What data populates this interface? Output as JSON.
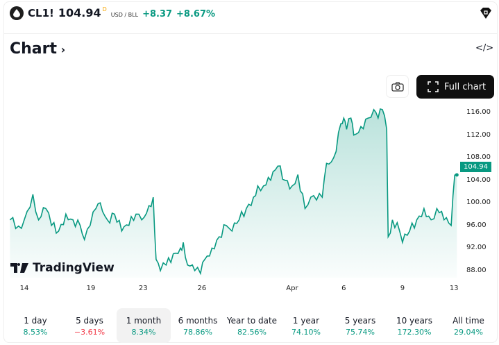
{
  "header": {
    "symbol": "CL1!",
    "price": "104.94",
    "price_flag": "D",
    "currency": "USD / BLL",
    "change": "+8.37",
    "change_pct": "+8.67%"
  },
  "title": "Chart",
  "buttons": {
    "full_chart": "Full chart"
  },
  "brand": "TradingView",
  "last_price_badge": "104.94",
  "periods": [
    {
      "label": "1 day",
      "value": "8.53%",
      "neg": false
    },
    {
      "label": "5 days",
      "value": "−3.61%",
      "neg": true
    },
    {
      "label": "1 month",
      "value": "8.34%",
      "neg": false,
      "selected": true
    },
    {
      "label": "6 months",
      "value": "78.86%",
      "neg": false
    },
    {
      "label": "Year to date",
      "value": "82.56%",
      "neg": false
    },
    {
      "label": "1 year",
      "value": "74.10%",
      "neg": false
    },
    {
      "label": "5 years",
      "value": "75.74%",
      "neg": false
    },
    {
      "label": "10 years",
      "value": "172.30%",
      "neg": false
    },
    {
      "label": "All time",
      "value": "29.04%",
      "neg": false
    }
  ],
  "colors": {
    "line": "#089981",
    "negative": "#f23645"
  },
  "chart_data": {
    "type": "area",
    "ylim": [
      86,
      118
    ],
    "y_ticks": [
      "116.00",
      "112.00",
      "108.00",
      "104.00",
      "100.00",
      "96.00",
      "92.00",
      "88.00"
    ],
    "x_ticks": [
      {
        "label": "14",
        "day": 0
      },
      {
        "label": "19",
        "day": 4.65
      },
      {
        "label": "23",
        "day": 8.3
      },
      {
        "label": "26",
        "day": 12.4
      },
      {
        "label": "Apr",
        "day": 18.7
      },
      {
        "label": "6",
        "day": 22.3
      },
      {
        "label": "9",
        "day": 26.4
      },
      {
        "label": "13",
        "day": 30
      }
    ],
    "points": [
      [
        -1,
        97
      ],
      [
        -0.2,
        95.5
      ],
      [
        0.2,
        98.5
      ],
      [
        0.6,
        101.5
      ],
      [
        1,
        97
      ],
      [
        1.5,
        99
      ],
      [
        1.9,
        96
      ],
      [
        2.4,
        95
      ],
      [
        2.9,
        98
      ],
      [
        3.4,
        97
      ],
      [
        3.9,
        96
      ],
      [
        4.2,
        93.5
      ],
      [
        4.6,
        96
      ],
      [
        5,
        99
      ],
      [
        5.3,
        100
      ],
      [
        5.8,
        97
      ],
      [
        6.3,
        98
      ],
      [
        6.8,
        95
      ],
      [
        7.3,
        96
      ],
      [
        7.8,
        98
      ],
      [
        8.2,
        97
      ],
      [
        8.7,
        99.5
      ],
      [
        9,
        101
      ],
      [
        9.2,
        90
      ],
      [
        9.5,
        88
      ],
      [
        9.9,
        89
      ],
      [
        10.4,
        91
      ],
      [
        10.9,
        92
      ],
      [
        11.1,
        93
      ],
      [
        11.4,
        89
      ],
      [
        11.9,
        88
      ],
      [
        12.3,
        87.5
      ],
      [
        12.6,
        90
      ],
      [
        13.1,
        92
      ],
      [
        13.6,
        94
      ],
      [
        14.1,
        96
      ],
      [
        14.5,
        95
      ],
      [
        15,
        97
      ],
      [
        15.5,
        99
      ],
      [
        16,
        101
      ],
      [
        16.3,
        103
      ],
      [
        16.7,
        103
      ],
      [
        17.2,
        104
      ],
      [
        17.7,
        106.5
      ],
      [
        18.2,
        104
      ],
      [
        18.7,
        103
      ],
      [
        19.1,
        105
      ],
      [
        19.6,
        99
      ],
      [
        20,
        101
      ],
      [
        20.4,
        100.5
      ],
      [
        20.8,
        101
      ],
      [
        21.1,
        107
      ],
      [
        21.6,
        108
      ],
      [
        22.1,
        114
      ],
      [
        22.3,
        115
      ],
      [
        22.5,
        113
      ],
      [
        22.8,
        115
      ],
      [
        23,
        112
      ],
      [
        23.5,
        113.5
      ],
      [
        24,
        115
      ],
      [
        24.4,
        116.5
      ],
      [
        24.7,
        115
      ],
      [
        25,
        116.5
      ],
      [
        25.3,
        113
      ],
      [
        25.4,
        94
      ],
      [
        25.7,
        97
      ],
      [
        26.2,
        95
      ],
      [
        26.4,
        93
      ],
      [
        26.9,
        95
      ],
      [
        27.4,
        97
      ],
      [
        27.9,
        99
      ],
      [
        28.4,
        97
      ],
      [
        28.8,
        99
      ],
      [
        29.3,
        97
      ],
      [
        29.8,
        96
      ],
      [
        30.05,
        104.9
      ],
      [
        30.2,
        104.94
      ]
    ]
  }
}
